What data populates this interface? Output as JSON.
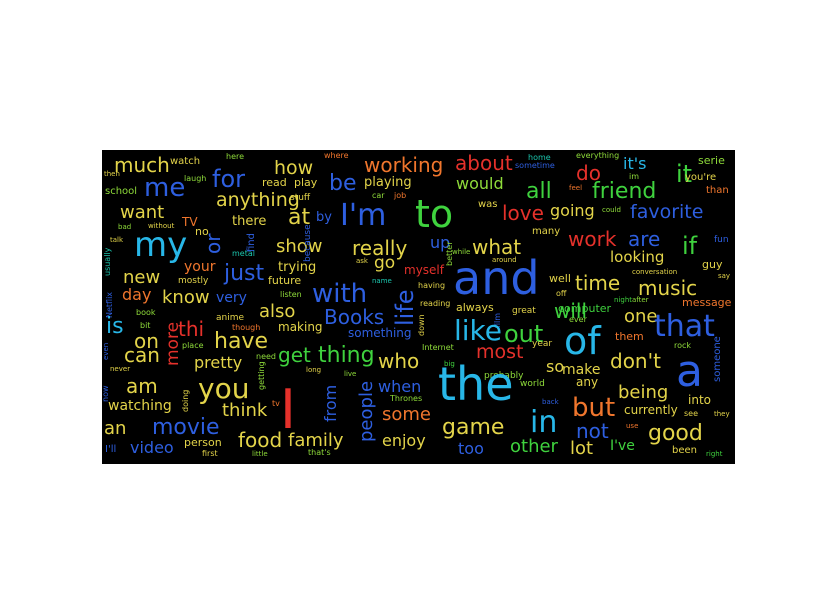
{
  "image": {
    "background": "#000000",
    "page_background": "#ffffff",
    "palette": {
      "red": "#e5312b",
      "orange": "#f0762d",
      "yellow": "#e3d44a",
      "lime": "#8fdc3a",
      "green": "#3fd23e",
      "teal": "#1bc6ae",
      "cyan": "#28b7e8",
      "blue": "#2e5fe0",
      "violet": "#4a3ae8"
    },
    "words": [
      {
        "text": "much",
        "color": "#e3d44a"
      },
      {
        "text": "watch",
        "color": "#e3d44a"
      },
      {
        "text": "here",
        "color": "#8fdc3a"
      },
      {
        "text": "how",
        "color": "#e3d44a"
      },
      {
        "text": "where",
        "color": "#f0762d"
      },
      {
        "text": "working",
        "color": "#f0762d"
      },
      {
        "text": "about",
        "color": "#e5312b"
      },
      {
        "text": "home",
        "color": "#1bc6ae"
      },
      {
        "text": "everything",
        "color": "#8fdc3a"
      },
      {
        "text": "it's",
        "color": "#28b7e8"
      },
      {
        "text": "serie",
        "color": "#8fdc3a"
      },
      {
        "text": "then",
        "color": "#e3d44a"
      },
      {
        "text": "me",
        "color": "#2e5fe0"
      },
      {
        "text": "laugh",
        "color": "#8fdc3a"
      },
      {
        "text": "for",
        "color": "#2e5fe0"
      },
      {
        "text": "read",
        "color": "#e3d44a"
      },
      {
        "text": "play",
        "color": "#e3d44a"
      },
      {
        "text": "be",
        "color": "#2e5fe0"
      },
      {
        "text": "playing",
        "color": "#e3d44a"
      },
      {
        "text": "would",
        "color": "#8fdc3a"
      },
      {
        "text": "sometime",
        "color": "#2e5fe0"
      },
      {
        "text": "do",
        "color": "#e5312b"
      },
      {
        "text": "im",
        "color": "#8fdc3a"
      },
      {
        "text": "it",
        "color": "#3fd23e"
      },
      {
        "text": "you're",
        "color": "#e3d44a"
      },
      {
        "text": "than",
        "color": "#f0762d"
      },
      {
        "text": "school",
        "color": "#8fdc3a"
      },
      {
        "text": "anything",
        "color": "#e3d44a"
      },
      {
        "text": "stuff",
        "color": "#e3d44a"
      },
      {
        "text": "car",
        "color": "#8fdc3a"
      },
      {
        "text": "job",
        "color": "#f0762d"
      },
      {
        "text": "all",
        "color": "#3fd23e"
      },
      {
        "text": "feel",
        "color": "#f0762d"
      },
      {
        "text": "friend",
        "color": "#3fd23e"
      },
      {
        "text": "want",
        "color": "#e3d44a"
      },
      {
        "text": "bad",
        "color": "#8fdc3a"
      },
      {
        "text": "without",
        "color": "#e3d44a"
      },
      {
        "text": "TV",
        "color": "#f0762d"
      },
      {
        "text": "no",
        "color": "#e3d44a"
      },
      {
        "text": "there",
        "color": "#e3d44a"
      },
      {
        "text": "at",
        "color": "#e3d44a"
      },
      {
        "text": "by",
        "color": "#2e5fe0"
      },
      {
        "text": "I'm",
        "color": "#2e5fe0"
      },
      {
        "text": "to",
        "color": "#3fd23e"
      },
      {
        "text": "was",
        "color": "#e3d44a"
      },
      {
        "text": "love",
        "color": "#e5312b"
      },
      {
        "text": "going",
        "color": "#e3d44a"
      },
      {
        "text": "could",
        "color": "#8fdc3a"
      },
      {
        "text": "favorite",
        "color": "#2e5fe0"
      },
      {
        "text": "talk",
        "color": "#e3d44a"
      },
      {
        "text": "my",
        "color": "#28b7e8"
      },
      {
        "text": "or",
        "color": "#2e5fe0"
      },
      {
        "text": "metal",
        "color": "#1bc6ae"
      },
      {
        "text": "find",
        "color": "#2e5fe0"
      },
      {
        "text": "show",
        "color": "#e3d44a"
      },
      {
        "text": "because",
        "color": "#2e5fe0"
      },
      {
        "text": "really",
        "color": "#e3d44a"
      },
      {
        "text": "up",
        "color": "#2e5fe0"
      },
      {
        "text": "better",
        "color": "#8fdc3a"
      },
      {
        "text": "what",
        "color": "#e3d44a"
      },
      {
        "text": "many",
        "color": "#e3d44a"
      },
      {
        "text": "work",
        "color": "#e5312b"
      },
      {
        "text": "are",
        "color": "#2e5fe0"
      },
      {
        "text": "if",
        "color": "#3fd23e"
      },
      {
        "text": "fun",
        "color": "#2e5fe0"
      },
      {
        "text": "usually",
        "color": "#1bc6ae"
      },
      {
        "text": "new",
        "color": "#e3d44a"
      },
      {
        "text": "your",
        "color": "#f0762d"
      },
      {
        "text": "just",
        "color": "#2e5fe0"
      },
      {
        "text": "trying",
        "color": "#e3d44a"
      },
      {
        "text": "ask",
        "color": "#e3d44a"
      },
      {
        "text": "go",
        "color": "#e3d44a"
      },
      {
        "text": "myself",
        "color": "#e5312b"
      },
      {
        "text": "while",
        "color": "#8fdc3a"
      },
      {
        "text": "and",
        "color": "#2e5fe0"
      },
      {
        "text": "around",
        "color": "#e3d44a"
      },
      {
        "text": "looking",
        "color": "#e3d44a"
      },
      {
        "text": "conversation",
        "color": "#e3d44a"
      },
      {
        "text": "guy",
        "color": "#e3d44a"
      },
      {
        "text": "say",
        "color": "#e3d44a"
      },
      {
        "text": "Netflix",
        "color": "#2e5fe0"
      },
      {
        "text": "mostly",
        "color": "#e3d44a"
      },
      {
        "text": "day",
        "color": "#f0762d"
      },
      {
        "text": "know",
        "color": "#e3d44a"
      },
      {
        "text": "very",
        "color": "#2e5fe0"
      },
      {
        "text": "future",
        "color": "#e3d44a"
      },
      {
        "text": "with",
        "color": "#2e5fe0"
      },
      {
        "text": "name",
        "color": "#1bc6ae"
      },
      {
        "text": "having",
        "color": "#e3d44a"
      },
      {
        "text": "time",
        "color": "#e3d44a"
      },
      {
        "text": "well",
        "color": "#e3d44a"
      },
      {
        "text": "off",
        "color": "#e3d44a"
      },
      {
        "text": "music",
        "color": "#e3d44a"
      },
      {
        "text": "message",
        "color": "#f0762d"
      },
      {
        "text": "night",
        "color": "#3fd23e"
      },
      {
        "text": "after",
        "color": "#8fdc3a"
      },
      {
        "text": "book",
        "color": "#8fdc3a"
      },
      {
        "text": "anime",
        "color": "#e3d44a"
      },
      {
        "text": "listen",
        "color": "#8fdc3a"
      },
      {
        "text": "life",
        "color": "#2e5fe0"
      },
      {
        "text": "reading",
        "color": "#e3d44a"
      },
      {
        "text": "always",
        "color": "#e3d44a"
      },
      {
        "text": "film",
        "color": "#2e5fe0"
      },
      {
        "text": "great",
        "color": "#e3d44a"
      },
      {
        "text": "computer",
        "color": "#3fd23e"
      },
      {
        "text": "ever",
        "color": "#8fdc3a"
      },
      {
        "text": "is",
        "color": "#28b7e8"
      },
      {
        "text": "bit",
        "color": "#8fdc3a"
      },
      {
        "text": "thi",
        "color": "#e5312b"
      },
      {
        "text": "also",
        "color": "#e3d44a"
      },
      {
        "text": "making",
        "color": "#e3d44a"
      },
      {
        "text": "Books",
        "color": "#2e5fe0"
      },
      {
        "text": "though",
        "color": "#f0762d"
      },
      {
        "text": "something",
        "color": "#2e5fe0"
      },
      {
        "text": "down",
        "color": "#e3d44a"
      },
      {
        "text": "like",
        "color": "#28b7e8"
      },
      {
        "text": "out",
        "color": "#3fd23e"
      },
      {
        "text": "will",
        "color": "#3fd23e"
      },
      {
        "text": "one",
        "color": "#e3d44a"
      },
      {
        "text": "that",
        "color": "#2e5fe0"
      },
      {
        "text": "on",
        "color": "#e3d44a"
      },
      {
        "text": "more",
        "color": "#e5312b"
      },
      {
        "text": "place",
        "color": "#8fdc3a"
      },
      {
        "text": "have",
        "color": "#e3d44a"
      },
      {
        "text": "them",
        "color": "#f0762d"
      },
      {
        "text": "of",
        "color": "#28b7e8"
      },
      {
        "text": "rock",
        "color": "#8fdc3a"
      },
      {
        "text": "even",
        "color": "#2e5fe0"
      },
      {
        "text": "can",
        "color": "#e3d44a"
      },
      {
        "text": "pretty",
        "color": "#e3d44a"
      },
      {
        "text": "need",
        "color": "#8fdc3a"
      },
      {
        "text": "get",
        "color": "#3fd23e"
      },
      {
        "text": "thing",
        "color": "#3fd23e"
      },
      {
        "text": "Internet",
        "color": "#8fdc3a"
      },
      {
        "text": "big",
        "color": "#3fd23e"
      },
      {
        "text": "most",
        "color": "#e5312b"
      },
      {
        "text": "year",
        "color": "#e3d44a"
      },
      {
        "text": "don't",
        "color": "#e3d44a"
      },
      {
        "text": "someone",
        "color": "#2e5fe0"
      },
      {
        "text": "never",
        "color": "#e3d44a"
      },
      {
        "text": "who",
        "color": "#e3d44a"
      },
      {
        "text": "so",
        "color": "#e3d44a"
      },
      {
        "text": "make",
        "color": "#e3d44a"
      },
      {
        "text": "long",
        "color": "#e3d44a"
      },
      {
        "text": "live",
        "color": "#8fdc3a"
      },
      {
        "text": "probably",
        "color": "#8fdc3a"
      },
      {
        "text": "a",
        "color": "#2e5fe0"
      },
      {
        "text": "am",
        "color": "#e3d44a"
      },
      {
        "text": "getting",
        "color": "#8fdc3a"
      },
      {
        "text": "you",
        "color": "#e3d44a"
      },
      {
        "text": "I",
        "color": "#e5312b"
      },
      {
        "text": "from",
        "color": "#2e5fe0"
      },
      {
        "text": "people",
        "color": "#2e5fe0"
      },
      {
        "text": "when",
        "color": "#2e5fe0"
      },
      {
        "text": "the",
        "color": "#28b7e8"
      },
      {
        "text": "world",
        "color": "#8fdc3a"
      },
      {
        "text": "any",
        "color": "#e3d44a"
      },
      {
        "text": "being",
        "color": "#e3d44a"
      },
      {
        "text": "into",
        "color": "#e3d44a"
      },
      {
        "text": "now",
        "color": "#2e5fe0"
      },
      {
        "text": "doing",
        "color": "#e3d44a"
      },
      {
        "text": "Thrones",
        "color": "#8fdc3a"
      },
      {
        "text": "back",
        "color": "#2e5fe0"
      },
      {
        "text": "watching",
        "color": "#e3d44a"
      },
      {
        "text": "think",
        "color": "#e3d44a"
      },
      {
        "text": "tv",
        "color": "#f0762d"
      },
      {
        "text": "some",
        "color": "#f0762d"
      },
      {
        "text": "but",
        "color": "#f0762d"
      },
      {
        "text": "currently",
        "color": "#e3d44a"
      },
      {
        "text": "see",
        "color": "#e3d44a"
      },
      {
        "text": "they",
        "color": "#e3d44a"
      },
      {
        "text": "an",
        "color": "#e3d44a"
      },
      {
        "text": "movie",
        "color": "#2e5fe0"
      },
      {
        "text": "game",
        "color": "#e3d44a"
      },
      {
        "text": "in",
        "color": "#28b7e8"
      },
      {
        "text": "not",
        "color": "#2e5fe0"
      },
      {
        "text": "use",
        "color": "#f0762d"
      },
      {
        "text": "good",
        "color": "#e3d44a"
      },
      {
        "text": "food",
        "color": "#e3d44a"
      },
      {
        "text": "family",
        "color": "#e3d44a"
      },
      {
        "text": "enjoy",
        "color": "#e3d44a"
      },
      {
        "text": "I've",
        "color": "#3fd23e"
      },
      {
        "text": "I'll",
        "color": "#2e5fe0"
      },
      {
        "text": "video",
        "color": "#2e5fe0"
      },
      {
        "text": "person",
        "color": "#e3d44a"
      },
      {
        "text": "first",
        "color": "#e3d44a"
      },
      {
        "text": "little",
        "color": "#8fdc3a"
      },
      {
        "text": "that's",
        "color": "#8fdc3a"
      },
      {
        "text": "too",
        "color": "#2e5fe0"
      },
      {
        "text": "other",
        "color": "#3fd23e"
      },
      {
        "text": "lot",
        "color": "#e3d44a"
      },
      {
        "text": "been",
        "color": "#e3d44a"
      },
      {
        "text": "right",
        "color": "#3fd23e"
      }
    ]
  }
}
